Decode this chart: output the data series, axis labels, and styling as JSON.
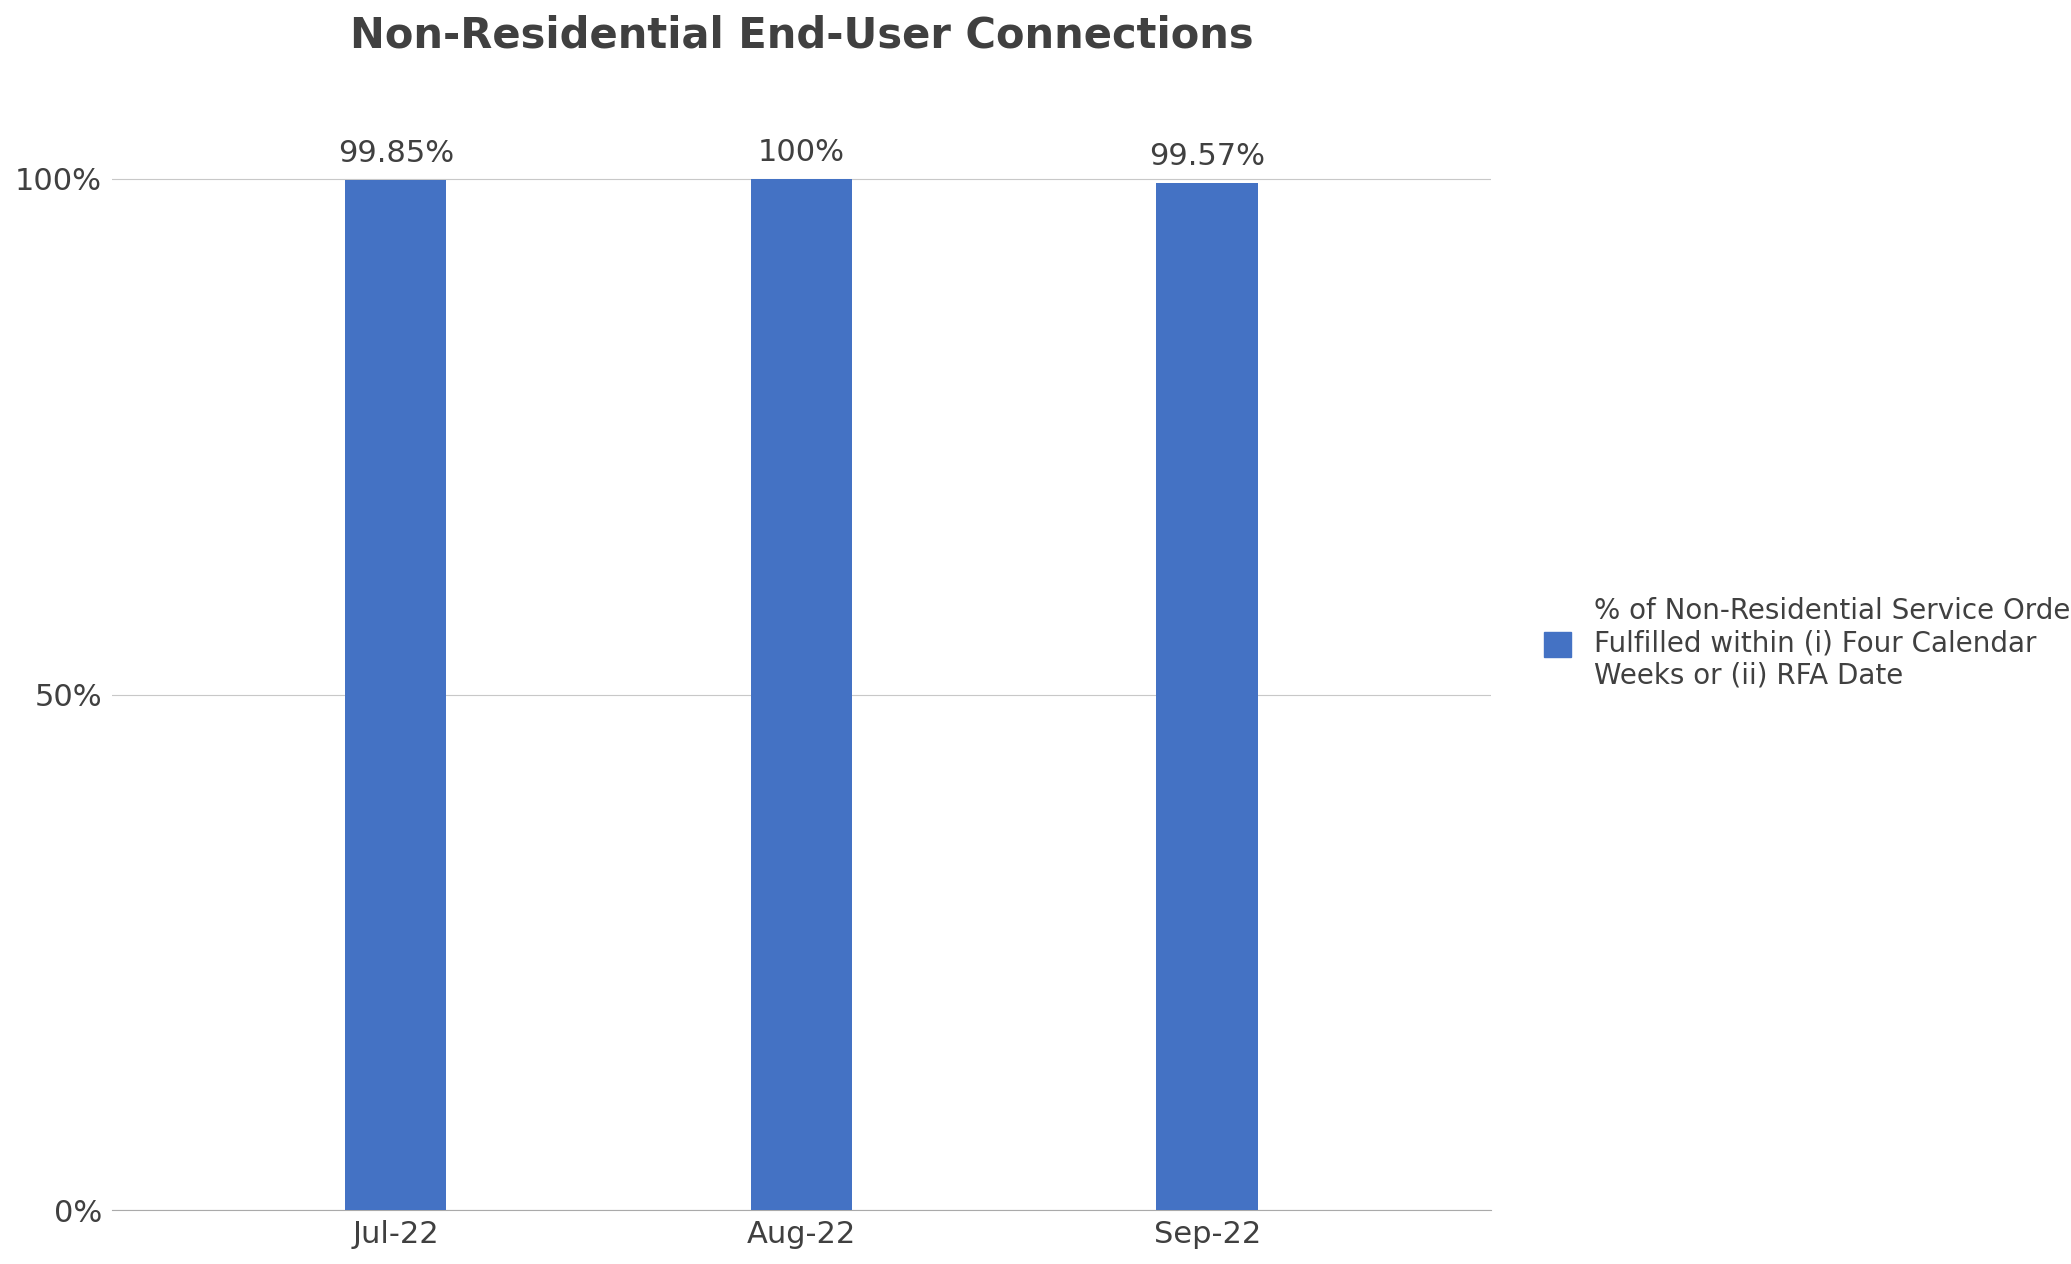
{
  "title": "Non-Residential End-User Connections",
  "categories": [
    "Jul-22",
    "Aug-22",
    "Sep-22"
  ],
  "values": [
    99.85,
    100.0,
    99.57
  ],
  "bar_labels": [
    "99.85%",
    "100%",
    "99.57%"
  ],
  "bar_color": "#4472C4",
  "ylim": [
    0,
    110
  ],
  "yticks": [
    0,
    50,
    100
  ],
  "ytick_labels": [
    "0%",
    "50%",
    "100%"
  ],
  "legend_label": "% of Non-Residential Service Orders\nFulfilled within (i) Four Calendar\nWeeks or (ii) RFA Date",
  "title_fontsize": 30,
  "tick_fontsize": 22,
  "legend_fontsize": 20,
  "bar_label_fontsize": 22,
  "text_color": "#404040",
  "background_color": "#ffffff",
  "grid_color": "#c8c8c8",
  "bar_width": 0.25
}
